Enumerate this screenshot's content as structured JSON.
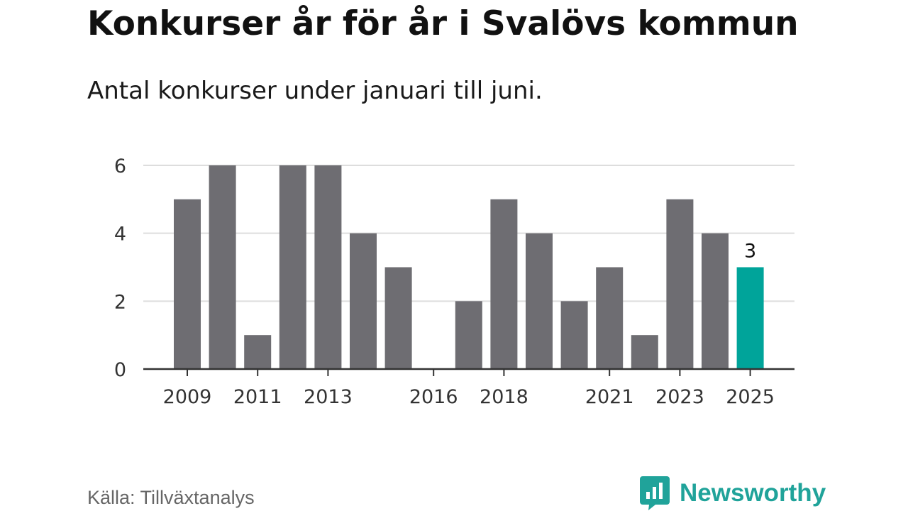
{
  "header": {
    "title": "Konkurser år för år i Svalövs kommun",
    "subtitle": "Antal konkurser under januari till juni."
  },
  "footer": {
    "source": "Källa: Tillväxtanalys",
    "brand": "Newsworthy",
    "brand_icon": "newsworthy-logo-icon"
  },
  "colors": {
    "bar": "#6e6d72",
    "highlight": "#00a49a",
    "grid": "#dddddd",
    "axis": "#333333",
    "brand": "#20a39a"
  },
  "chart_data": {
    "type": "bar",
    "categories": [
      "2009",
      "2010",
      "2011",
      "2012",
      "2013",
      "2014",
      "2015",
      "2016",
      "2017",
      "2018",
      "2019",
      "2020",
      "2021",
      "2022",
      "2023",
      "2024",
      "2025"
    ],
    "values": [
      5,
      6,
      1,
      6,
      6,
      4,
      3,
      0,
      2,
      5,
      4,
      2,
      3,
      1,
      5,
      4,
      3
    ],
    "x_tick_labels": [
      "2009",
      "2011",
      "2013",
      "2016",
      "2018",
      "2021",
      "2023",
      "2025"
    ],
    "y_ticks": [
      0,
      2,
      4,
      6
    ],
    "ylim": [
      0,
      6
    ],
    "highlight_category": "2025",
    "data_labels": [
      {
        "category": "2025",
        "text": "3"
      }
    ],
    "grid": true,
    "legend": "none",
    "title": "Konkurser år för år i Svalövs kommun",
    "subtitle": "Antal konkurser under januari till juni.",
    "xlabel": "",
    "ylabel": ""
  }
}
